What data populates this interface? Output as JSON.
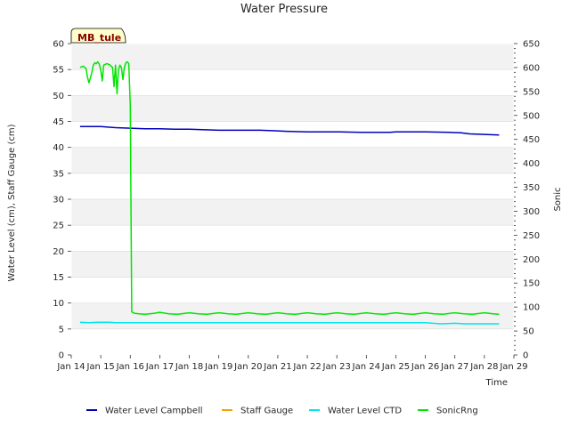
{
  "chart_data": {
    "type": "line",
    "title": "Water Pressure",
    "site_label": "MB_tule",
    "xlabel": "Time",
    "ylabel": "Water Level (cm), Staff Gauge (cm)",
    "y2label": "Sonic",
    "xlim": [
      0,
      15
    ],
    "ylim": [
      0,
      60
    ],
    "y2lim": [
      0,
      650
    ],
    "x_tick_values": [
      0,
      1,
      2,
      3,
      4,
      5,
      6,
      7,
      8,
      9,
      10,
      11,
      12,
      13,
      14,
      15
    ],
    "x_tick_labels": [
      "Jan 14",
      "Jan 15",
      "Jan 16",
      "Jan 17",
      "Jan 18",
      "Jan 19",
      "Jan 20",
      "Jan 21",
      "Jan 22",
      "Jan 23",
      "Jan 24",
      "Jan 25",
      "Jan 26",
      "Jan 27",
      "Jan 28",
      "Jan 29"
    ],
    "y_ticks": [
      0,
      5,
      10,
      15,
      20,
      25,
      30,
      35,
      40,
      45,
      50,
      55,
      60
    ],
    "y2_ticks": [
      0,
      50,
      100,
      150,
      200,
      250,
      300,
      350,
      400,
      450,
      500,
      550,
      600,
      650
    ],
    "colors": {
      "band": "#f2f2f2",
      "grid": "#dcdcdc",
      "badge_fill": "#ffffcc"
    },
    "series": [
      {
        "name": "Water Level Campbell",
        "axis": "left",
        "color": "#0000bb",
        "x": [
          0.3,
          1.0,
          1.5,
          2.0,
          2.5,
          3.0,
          3.5,
          4.0,
          5.0,
          6.0,
          6.4,
          6.9,
          7.3,
          8.0,
          9.0,
          9.8,
          10.3,
          10.8,
          11.0,
          12.0,
          12.8,
          13.2,
          13.5,
          14.0,
          14.5
        ],
        "values": [
          44.0,
          44.0,
          43.8,
          43.7,
          43.6,
          43.6,
          43.5,
          43.5,
          43.3,
          43.3,
          43.3,
          43.2,
          43.1,
          43.0,
          43.0,
          42.9,
          42.9,
          42.9,
          43.0,
          43.0,
          42.9,
          42.8,
          42.6,
          42.5,
          42.4
        ]
      },
      {
        "name": "Staff Gauge",
        "axis": "left",
        "color": "#f5a000",
        "x": [],
        "values": []
      },
      {
        "name": "Water Level CTD",
        "axis": "left",
        "color": "#00e5ee",
        "x": [
          0.3,
          0.6,
          0.9,
          1.3,
          1.5,
          3.0,
          6.0,
          9.0,
          12.0,
          12.5,
          13.0,
          13.3,
          13.5,
          14.5
        ],
        "values": [
          6.3,
          6.2,
          6.3,
          6.3,
          6.2,
          6.2,
          6.2,
          6.2,
          6.2,
          6.0,
          6.1,
          6.0,
          6.0,
          6.0
        ]
      },
      {
        "name": "SonicRng",
        "axis": "right",
        "color": "#00e600",
        "x": [
          0.3,
          0.4,
          0.5,
          0.55,
          0.6,
          0.7,
          0.75,
          0.8,
          0.85,
          0.9,
          0.95,
          1.0,
          1.05,
          1.1,
          1.2,
          1.3,
          1.4,
          1.45,
          1.5,
          1.55,
          1.6,
          1.65,
          1.7,
          1.75,
          1.8,
          1.85,
          1.9,
          1.95,
          2.0,
          2.05,
          2.1,
          2.15,
          2.3,
          2.5,
          2.8,
          3.0,
          3.3,
          3.6,
          4.0,
          4.3,
          4.6,
          5.0,
          5.3,
          5.6,
          6.0,
          6.3,
          6.6,
          7.0,
          7.3,
          7.6,
          8.0,
          8.3,
          8.6,
          9.0,
          9.3,
          9.6,
          10.0,
          10.3,
          10.6,
          11.0,
          11.3,
          11.6,
          12.0,
          12.3,
          12.6,
          13.0,
          13.3,
          13.6,
          14.0,
          14.3,
          14.5
        ],
        "values": [
          600,
          603,
          598,
          580,
          568,
          590,
          605,
          610,
          608,
          612,
          607,
          595,
          572,
          605,
          608,
          606,
          600,
          560,
          605,
          545,
          595,
          605,
          600,
          575,
          600,
          610,
          612,
          608,
          520,
          90,
          88,
          87,
          86,
          85,
          87,
          89,
          86,
          85,
          88,
          86,
          85,
          88,
          86,
          85,
          88,
          86,
          85,
          88,
          86,
          85,
          88,
          86,
          85,
          88,
          86,
          85,
          88,
          86,
          85,
          88,
          86,
          85,
          88,
          86,
          85,
          88,
          86,
          85,
          88,
          86,
          85
        ]
      }
    ]
  }
}
